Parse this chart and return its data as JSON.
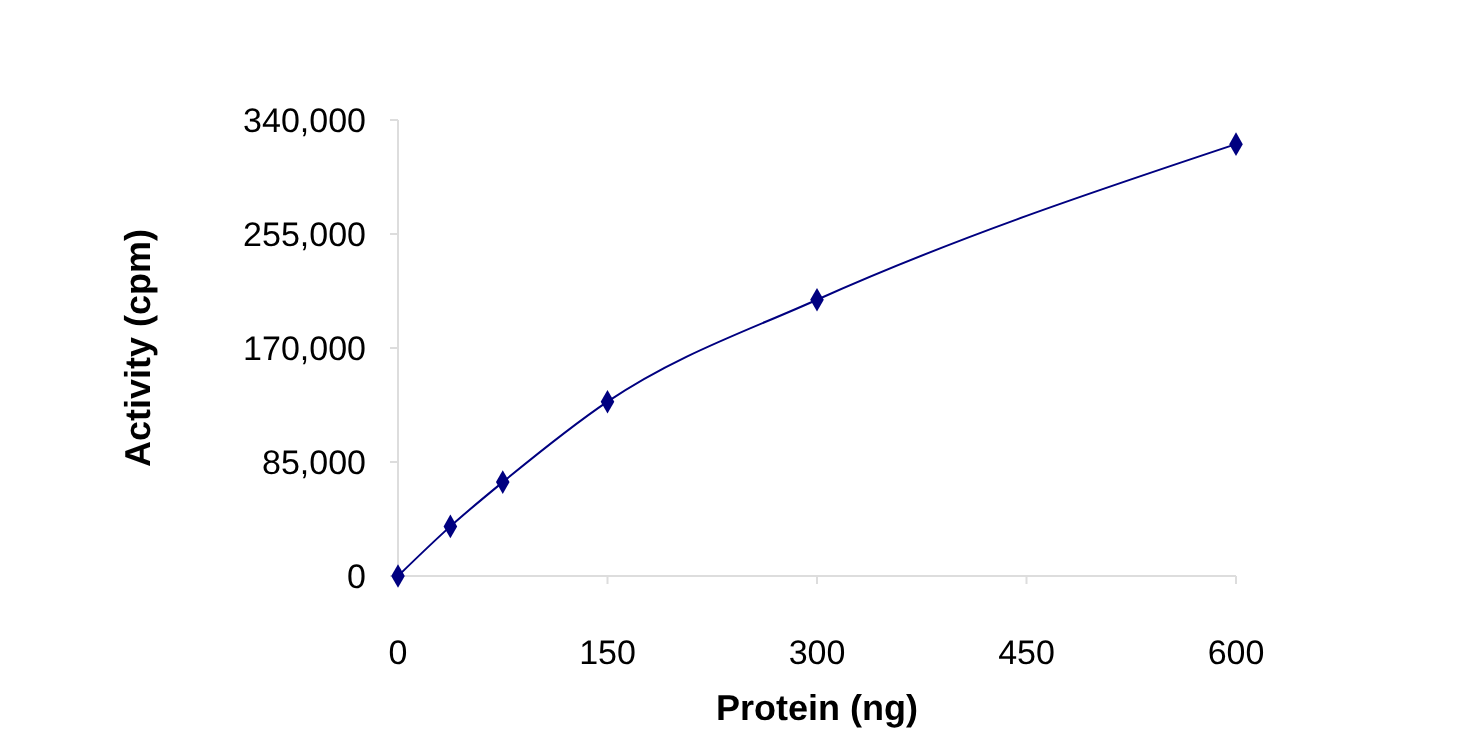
{
  "chart_data": {
    "type": "line",
    "xlabel": "Protein (ng)",
    "ylabel": "Activity (cpm)",
    "x": [
      0,
      37.5,
      75,
      150,
      300,
      600
    ],
    "series": [
      {
        "color": "#000080",
        "values": [
          0,
          37000,
          70000,
          130000,
          206000,
          322000
        ]
      }
    ],
    "xlim": [
      0,
      600
    ],
    "xticks": [
      0,
      150,
      300,
      450,
      600
    ],
    "ylim": [
      0,
      340000
    ],
    "yticks": [
      {
        "value": 0,
        "label": "0"
      },
      {
        "value": 85000,
        "label": "85,000"
      },
      {
        "value": 170000,
        "label": "170,000"
      },
      {
        "value": 255000,
        "label": "255,000"
      },
      {
        "value": 340000,
        "label": "340,000"
      }
    ],
    "grid": false,
    "marker": "diamond",
    "line_style": "solid"
  }
}
